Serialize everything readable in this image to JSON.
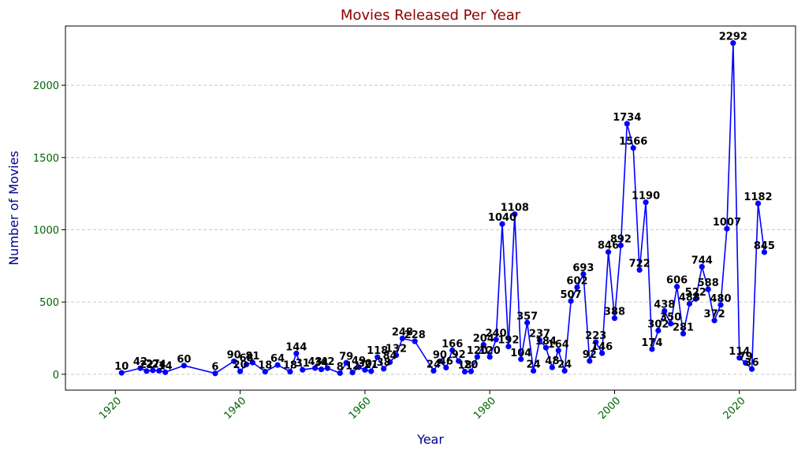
{
  "chart_data": {
    "type": "line",
    "title": "Movies Released Per Year",
    "xlabel": "Year",
    "ylabel": "Number of Movies",
    "xlim": [
      1912,
      2029
    ],
    "ylim": [
      -110,
      2410
    ],
    "x_ticks": [
      1920,
      1940,
      1960,
      1980,
      2000,
      2020
    ],
    "y_ticks": [
      0,
      500,
      1000,
      1500,
      2000
    ],
    "grid": "y-dashed",
    "colors": {
      "line": "#0000ff",
      "title": "#8b0000",
      "axis_label": "#00008b",
      "tick_label": "#006400",
      "data_label": "#000000",
      "grid": "#c8c8c8"
    },
    "series": [
      {
        "x": [
          1921,
          1924,
          1925,
          1926,
          1927,
          1928,
          1931,
          1936,
          1939,
          1940,
          1941,
          1942,
          1944,
          1946,
          1948,
          1949,
          1950,
          1952,
          1953,
          1954,
          1956,
          1957,
          1958,
          1959,
          1960,
          1961,
          1962,
          1963,
          1964,
          1965,
          1966,
          1968,
          1971,
          1972,
          1973,
          1974,
          1975,
          1976,
          1977,
          1978,
          1979,
          1980,
          1981,
          1982,
          1983,
          1984,
          1985,
          1986,
          1987,
          1988,
          1989,
          1990,
          1991,
          1992,
          1993,
          1994,
          1995,
          1996,
          1997,
          1998,
          1999,
          2000,
          2001,
          2002,
          2003,
          2004,
          2005,
          2006,
          2007,
          2008,
          2009,
          2010,
          2011,
          2012,
          2013,
          2014,
          2015,
          2016,
          2017,
          2018,
          2019,
          2020,
          2021,
          2022,
          2023,
          2024
        ],
        "values": [
          10,
          42,
          22,
          27,
          24,
          14,
          60,
          6,
          90,
          20,
          68,
          81,
          18,
          64,
          18,
          144,
          31,
          43,
          34,
          42,
          8,
          79,
          12,
          49,
          30,
          21,
          118,
          38,
          84,
          132,
          248,
          228,
          24,
          90,
          46,
          166,
          92,
          18,
          20,
          120,
          204,
          120,
          240,
          1040,
          192,
          1108,
          104,
          357,
          24,
          237,
          184,
          48,
          164,
          24,
          507,
          602,
          693,
          92,
          223,
          146,
          846,
          388,
          892,
          1734,
          1566,
          722,
          1190,
          174,
          302,
          438,
          350,
          606,
          281,
          488,
          522,
          744,
          588,
          372,
          480,
          1007,
          2292,
          114,
          79,
          36,
          1182,
          845
        ],
        "labels": [
          "10",
          "42",
          "22",
          "27",
          "24",
          "14",
          "60",
          "6",
          "90",
          "20",
          "68",
          "81",
          "18",
          "64",
          "18",
          "144",
          "31",
          "43",
          "34",
          "42",
          "8",
          "79",
          "12",
          "49",
          "30",
          "21",
          "118",
          "38",
          "84",
          "132",
          "248",
          "228",
          "24",
          "90",
          "46",
          "166",
          "92",
          "18",
          "20",
          "120",
          "204",
          "120",
          "240",
          "1040",
          "192",
          "1108",
          "104",
          "357",
          "24",
          "237",
          "184",
          "48",
          "164",
          "24",
          "507",
          "602",
          "693",
          "92",
          "223",
          "146",
          "846",
          "388",
          "892",
          "1734",
          "1566",
          "722",
          "1190",
          "174",
          "302",
          "438",
          "350",
          "606",
          "281",
          "488",
          "522",
          "744",
          "588",
          "372",
          "480",
          "1007",
          "2292",
          "114",
          "79",
          "36",
          "1182",
          "845"
        ]
      }
    ]
  }
}
